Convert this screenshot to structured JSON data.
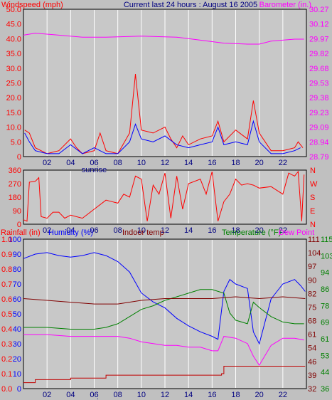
{
  "header": {
    "left_label": "Windspeed (mph)",
    "center_label": "Current last 24 hours : August 16 2005",
    "right_label": "Barometer (in.)"
  },
  "colors": {
    "background": "#c0c0c0",
    "plot_background": "#c8c8c8",
    "grid": "#ffffff",
    "red": "#ff0000",
    "blue": "#0000ff",
    "magenta": "#ff00ff",
    "green": "#008000",
    "maroon": "#800000",
    "darkred": "#c00000",
    "title_navy": "#000080"
  },
  "chart_data": [
    {
      "type": "line",
      "name": "wind-barometer",
      "x_tick_labels": [
        "02",
        "04",
        "06",
        "08",
        "10",
        "12",
        "14",
        "16",
        "18",
        "20",
        "22"
      ],
      "x_annotation": "sunrise",
      "left_axis": {
        "label": "Windspeed (mph)",
        "range": [
          0,
          50
        ],
        "ticks": [
          "0",
          "2.5",
          "5.0",
          "7.5",
          "10.0",
          "12.5",
          "15.0",
          "17.5",
          "20.0",
          "22.5",
          "25.0",
          "27.5",
          "30.0",
          "32.5",
          "35.0",
          "37.5",
          "40.0",
          "42.5",
          "45.0",
          "47.5",
          "50.0"
        ]
      },
      "right_axis": {
        "label": "Barometer (in.)",
        "range": [
          28.79,
          30.27
        ],
        "ticks": [
          "28.79",
          "28.94",
          "29.09",
          "29.23",
          "29.38",
          "29.53",
          "29.68",
          "29.82",
          "29.97",
          "30.12",
          "30.27"
        ]
      },
      "series": [
        {
          "name": "Windspeed",
          "color": "#ff0000",
          "points": [
            [
              0.1,
              9
            ],
            [
              0.5,
              8
            ],
            [
              1,
              3
            ],
            [
              2,
              1
            ],
            [
              3,
              2
            ],
            [
              4,
              6
            ],
            [
              4.5,
              3
            ],
            [
              5,
              1
            ],
            [
              6,
              2
            ],
            [
              6.5,
              8
            ],
            [
              7,
              2
            ],
            [
              8,
              1
            ],
            [
              9,
              8
            ],
            [
              9.5,
              28
            ],
            [
              10,
              9
            ],
            [
              11,
              8
            ],
            [
              12,
              10
            ],
            [
              12.5,
              6
            ],
            [
              13,
              3
            ],
            [
              13.5,
              7
            ],
            [
              14,
              4
            ],
            [
              15,
              6
            ],
            [
              16,
              7
            ],
            [
              16.5,
              12
            ],
            [
              17,
              5
            ],
            [
              18,
              9
            ],
            [
              19,
              6
            ],
            [
              19.5,
              19
            ],
            [
              20,
              8
            ],
            [
              21,
              2
            ],
            [
              22,
              2
            ],
            [
              23,
              3
            ],
            [
              23.3,
              5
            ],
            [
              23.7,
              3
            ]
          ]
        },
        {
          "name": "Gust",
          "color": "#0000ff",
          "points": [
            [
              0.1,
              8
            ],
            [
              0.5,
              5
            ],
            [
              1,
              2
            ],
            [
              2,
              1
            ],
            [
              3,
              1
            ],
            [
              4,
              4
            ],
            [
              5,
              1
            ],
            [
              6,
              3
            ],
            [
              7,
              1
            ],
            [
              8,
              1
            ],
            [
              9,
              5
            ],
            [
              9.5,
              11
            ],
            [
              10,
              6
            ],
            [
              11,
              5
            ],
            [
              12,
              7
            ],
            [
              13,
              4
            ],
            [
              14,
              3
            ],
            [
              15,
              4
            ],
            [
              16,
              5
            ],
            [
              16.5,
              10
            ],
            [
              17,
              4
            ],
            [
              18,
              5
            ],
            [
              19,
              4
            ],
            [
              19.5,
              12
            ],
            [
              20,
              5
            ],
            [
              21,
              1
            ],
            [
              22,
              1
            ],
            [
              23,
              2
            ],
            [
              23.5,
              3
            ]
          ]
        },
        {
          "name": "Barometer",
          "color": "#ff00ff",
          "points": [
            [
              0,
              30.01
            ],
            [
              1,
              30.03
            ],
            [
              3,
              30.01
            ],
            [
              5,
              29.99
            ],
            [
              7,
              29.99
            ],
            [
              10,
              30.0
            ],
            [
              13,
              29.99
            ],
            [
              15,
              29.96
            ],
            [
              17,
              29.93
            ],
            [
              19,
              29.92
            ],
            [
              20,
              29.92
            ],
            [
              21,
              29.95
            ],
            [
              23,
              29.97
            ],
            [
              23.8,
              29.97
            ]
          ]
        }
      ]
    },
    {
      "type": "line",
      "name": "wind-direction",
      "x_tick_labels": [
        "02",
        "04",
        "06",
        "08",
        "10",
        "12",
        "14",
        "16",
        "18",
        "20",
        "22"
      ],
      "left_axis": {
        "range": [
          0,
          360
        ],
        "ticks": [
          "0",
          "90",
          "180",
          "270",
          "360"
        ]
      },
      "right_axis": {
        "ticks": [
          "N",
          "E",
          "S",
          "W",
          "N"
        ]
      },
      "series": [
        {
          "name": "Direction",
          "color": "#ff0000",
          "points": [
            [
              0,
              30
            ],
            [
              0.3,
              20
            ],
            [
              0.5,
              280
            ],
            [
              1,
              285
            ],
            [
              1.3,
              310
            ],
            [
              1.5,
              50
            ],
            [
              2,
              40
            ],
            [
              2.5,
              80
            ],
            [
              3,
              80
            ],
            [
              3.5,
              40
            ],
            [
              4,
              60
            ],
            [
              5,
              40
            ],
            [
              6,
              100
            ],
            [
              7,
              160
            ],
            [
              7.5,
              150
            ],
            [
              8,
              140
            ],
            [
              8.5,
              200
            ],
            [
              9,
              180
            ],
            [
              9.5,
              320
            ],
            [
              10,
              300
            ],
            [
              10.5,
              20
            ],
            [
              11,
              260
            ],
            [
              11.5,
              200
            ],
            [
              12,
              340
            ],
            [
              12.5,
              40
            ],
            [
              13,
              320
            ],
            [
              13.5,
              100
            ],
            [
              14,
              270
            ],
            [
              15,
              300
            ],
            [
              15.5,
              200
            ],
            [
              16,
              350
            ],
            [
              16.5,
              20
            ],
            [
              17,
              150
            ],
            [
              17.5,
              200
            ],
            [
              18,
              300
            ],
            [
              18.5,
              260
            ],
            [
              19,
              270
            ],
            [
              19.5,
              260
            ],
            [
              20,
              240
            ],
            [
              21,
              250
            ],
            [
              22,
              200
            ],
            [
              22.5,
              340
            ],
            [
              23,
              320
            ],
            [
              23.3,
              350
            ],
            [
              23.6,
              20
            ],
            [
              23.8,
              330
            ]
          ]
        }
      ]
    },
    {
      "type": "line",
      "name": "humidity-temperature",
      "header": {
        "rainfall": "Rainfall (in)",
        "humidity": "Humidity (%)",
        "indoor": "Indoor temp",
        "temperature": "Temperature (°F)",
        "dewpoint": "Dew Point"
      },
      "x_tick_labels": [
        "02",
        "04",
        "06",
        "08",
        "10",
        "12",
        "14",
        "16",
        "18",
        "20",
        "22"
      ],
      "x_annotation": "sunrise",
      "left_axis": {
        "label": "Humidity (%)",
        "range": [
          0,
          100
        ],
        "ticks": [
          "0",
          "10",
          "20",
          "30",
          "40",
          "50",
          "60",
          "70",
          "80",
          "90",
          "100"
        ]
      },
      "rain_axis": {
        "label": "Rainfall (in)",
        "range": [
          0,
          1
        ],
        "ticks": [
          "0.0",
          "0.1",
          "0.2",
          "0.3",
          "0.4",
          "0.5",
          "0.6",
          "0.7",
          "0.8",
          "0.9",
          "1.0"
        ]
      },
      "right_axis": {
        "label": "Temperature (°F)",
        "range": [
          32,
          115
        ],
        "ticks_inner": [
          "32",
          "39",
          "46",
          "54",
          "61",
          "68",
          "75",
          "82",
          "90",
          "97",
          "104",
          "111"
        ],
        "ticks_outer": [
          "36",
          "40",
          "44",
          "49",
          "53",
          "57",
          "61",
          "65",
          "69",
          "74",
          "78",
          "82",
          "86",
          "90",
          "94",
          "98",
          "103",
          "107",
          "115"
        ]
      },
      "series": [
        {
          "name": "Humidity",
          "axis": "left",
          "color": "#0000ff",
          "points": [
            [
              0,
              87
            ],
            [
              1,
              90
            ],
            [
              2,
              91
            ],
            [
              3,
              89
            ],
            [
              4,
              88
            ],
            [
              5,
              89
            ],
            [
              6,
              91
            ],
            [
              7,
              89
            ],
            [
              8,
              85
            ],
            [
              9,
              78
            ],
            [
              10,
              64
            ],
            [
              11,
              58
            ],
            [
              12,
              54
            ],
            [
              13,
              47
            ],
            [
              14,
              42
            ],
            [
              15,
              38
            ],
            [
              16,
              35
            ],
            [
              16.5,
              33
            ],
            [
              17,
              65
            ],
            [
              17.5,
              73
            ],
            [
              18,
              70
            ],
            [
              19,
              67
            ],
            [
              19.5,
              38
            ],
            [
              20,
              30
            ],
            [
              20.5,
              45
            ],
            [
              21,
              60
            ],
            [
              22,
              70
            ],
            [
              23,
              73
            ],
            [
              23.5,
              69
            ],
            [
              23.9,
              65
            ]
          ]
        },
        {
          "name": "Temperature",
          "axis": "right",
          "color": "#008000",
          "points": [
            [
              0,
              66
            ],
            [
              2,
              66
            ],
            [
              4,
              65
            ],
            [
              6,
              65
            ],
            [
              7,
              66
            ],
            [
              8,
              68
            ],
            [
              9,
              72
            ],
            [
              10,
              76
            ],
            [
              11,
              78
            ],
            [
              12,
              81
            ],
            [
              13,
              83
            ],
            [
              14,
              85
            ],
            [
              15,
              87
            ],
            [
              16,
              87
            ],
            [
              17,
              85
            ],
            [
              17.5,
              74
            ],
            [
              18,
              70
            ],
            [
              19,
              68
            ],
            [
              19.5,
              80
            ],
            [
              20,
              77
            ],
            [
              21,
              72
            ],
            [
              22,
              69
            ],
            [
              23,
              68
            ],
            [
              23.8,
              68
            ]
          ]
        },
        {
          "name": "Dew Point",
          "axis": "right",
          "color": "#ff00ff",
          "points": [
            [
              0,
              62
            ],
            [
              2,
              62
            ],
            [
              4,
              61
            ],
            [
              6,
              61
            ],
            [
              8,
              61
            ],
            [
              9,
              60
            ],
            [
              10,
              58
            ],
            [
              11,
              57
            ],
            [
              12,
              56
            ],
            [
              13,
              56
            ],
            [
              14,
              55
            ],
            [
              15,
              55
            ],
            [
              16,
              53
            ],
            [
              16.5,
              53
            ],
            [
              17,
              61
            ],
            [
              18,
              60
            ],
            [
              19,
              57
            ],
            [
              19.5,
              50
            ],
            [
              20,
              45
            ],
            [
              21,
              56
            ],
            [
              22,
              60
            ],
            [
              23,
              60
            ],
            [
              23.8,
              59
            ]
          ]
        },
        {
          "name": "Indoor temp",
          "axis": "right",
          "color": "#800000",
          "points": [
            [
              0,
              82
            ],
            [
              2,
              81
            ],
            [
              4,
              80
            ],
            [
              6,
              79
            ],
            [
              8,
              79
            ],
            [
              10,
              81
            ],
            [
              12,
              82
            ],
            [
              14,
              82
            ],
            [
              16,
              82
            ],
            [
              18,
              83
            ],
            [
              20,
              82
            ],
            [
              22,
              83
            ],
            [
              23.9,
              82
            ]
          ]
        },
        {
          "name": "Rainfall",
          "axis": "rain",
          "color": "#c00000",
          "points": [
            [
              0,
              0.04
            ],
            [
              1,
              0.06
            ],
            [
              4,
              0.07
            ],
            [
              7,
              0.09
            ],
            [
              16.8,
              0.1
            ],
            [
              17,
              0.15
            ],
            [
              23.9,
              0.15
            ]
          ]
        }
      ]
    }
  ]
}
